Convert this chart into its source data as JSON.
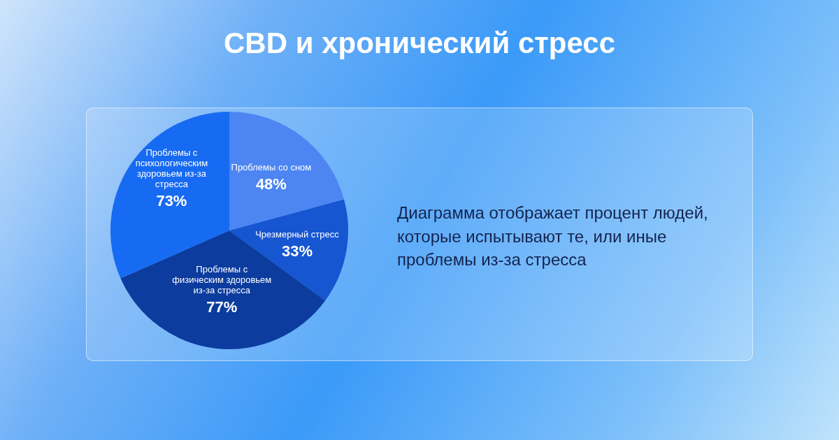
{
  "chart_data": {
    "type": "pie",
    "title": "CBD и хронический стресс",
    "categories": [
      "Проблемы со сном",
      "Чрезмерный стресс",
      "Проблемы с физическим здоровьем из-за стресса",
      "Проблемы с психологическим здоровьем из-за стресса"
    ],
    "values": [
      48,
      33,
      77,
      73
    ],
    "value_labels": [
      "48%",
      "33%",
      "77%",
      "73%"
    ],
    "colors": [
      "#4d86f2",
      "#1756d1",
      "#0b3c9e",
      "#176af2"
    ],
    "annotations": [
      "Диаграмма отображает процент людей, которые испытывают те, или иные проблемы из-за стресса"
    ]
  }
}
